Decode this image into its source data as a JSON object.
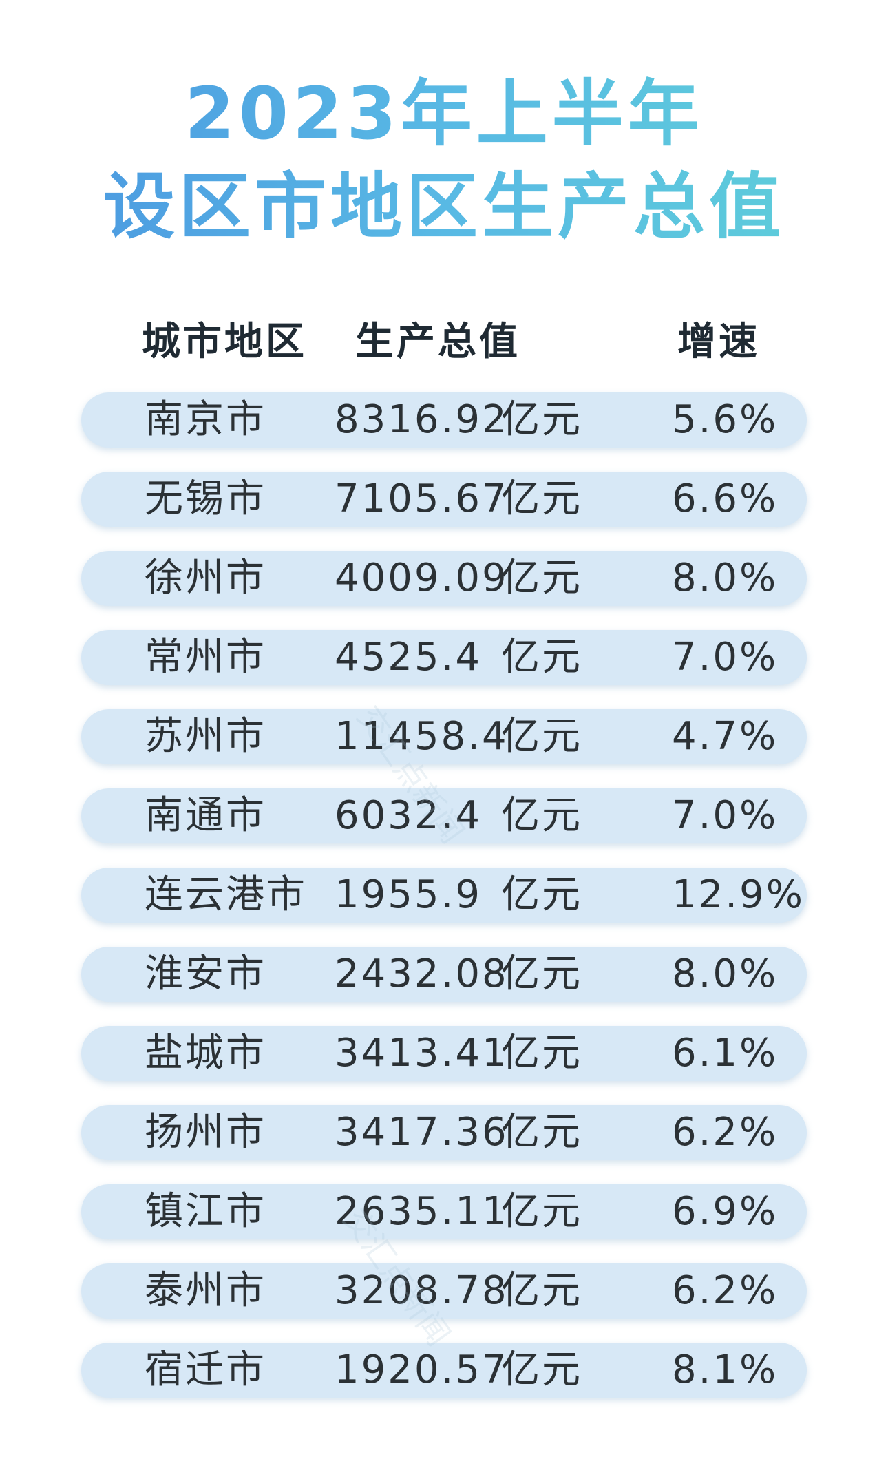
{
  "title": {
    "line1": "2023年上半年",
    "line2": "设区市地区生产总值"
  },
  "header": {
    "city": "城市地区",
    "gdp": "生产总值",
    "growth": "增速"
  },
  "rows": [
    {
      "city": "南京市",
      "gdp": "8316.92",
      "unit": "亿元",
      "growth": "5.6%"
    },
    {
      "city": "无锡市",
      "gdp": "7105.67",
      "unit": "亿元",
      "growth": "6.6%"
    },
    {
      "city": "徐州市",
      "gdp": "4009.09",
      "unit": "亿元",
      "growth": "8.0%"
    },
    {
      "city": "常州市",
      "gdp": "4525.4",
      "unit": "亿元",
      "growth": "7.0%"
    },
    {
      "city": "苏州市",
      "gdp": "11458.4",
      "unit": "亿元",
      "growth": "4.7%"
    },
    {
      "city": "南通市",
      "gdp": "6032.4",
      "unit": "亿元",
      "growth": "7.0%"
    },
    {
      "city": "连云港市",
      "gdp": "1955.9",
      "unit": "亿元",
      "growth": "12.9%"
    },
    {
      "city": "淮安市",
      "gdp": "2432.08",
      "unit": "亿元",
      "growth": "8.0%"
    },
    {
      "city": "盐城市",
      "gdp": "3413.41",
      "unit": "亿元",
      "growth": "6.1%"
    },
    {
      "city": "扬州市",
      "gdp": "3417.36",
      "unit": "亿元",
      "growth": "6.2%"
    },
    {
      "city": "镇江市",
      "gdp": "2635.11",
      "unit": "亿元",
      "growth": "6.9%"
    },
    {
      "city": "泰州市",
      "gdp": "3208.78",
      "unit": "亿元",
      "growth": "6.2%"
    },
    {
      "city": "宿迁市",
      "gdp": "1920.57",
      "unit": "亿元",
      "growth": "8.1%"
    }
  ],
  "watermark": {
    "text": "交汇点新闻"
  },
  "colors": {
    "title_gradient_start": "#4a95e0",
    "title_gradient_end": "#5fd0d8",
    "row_background": "#d7e8f6",
    "text": "#2b3135"
  }
}
